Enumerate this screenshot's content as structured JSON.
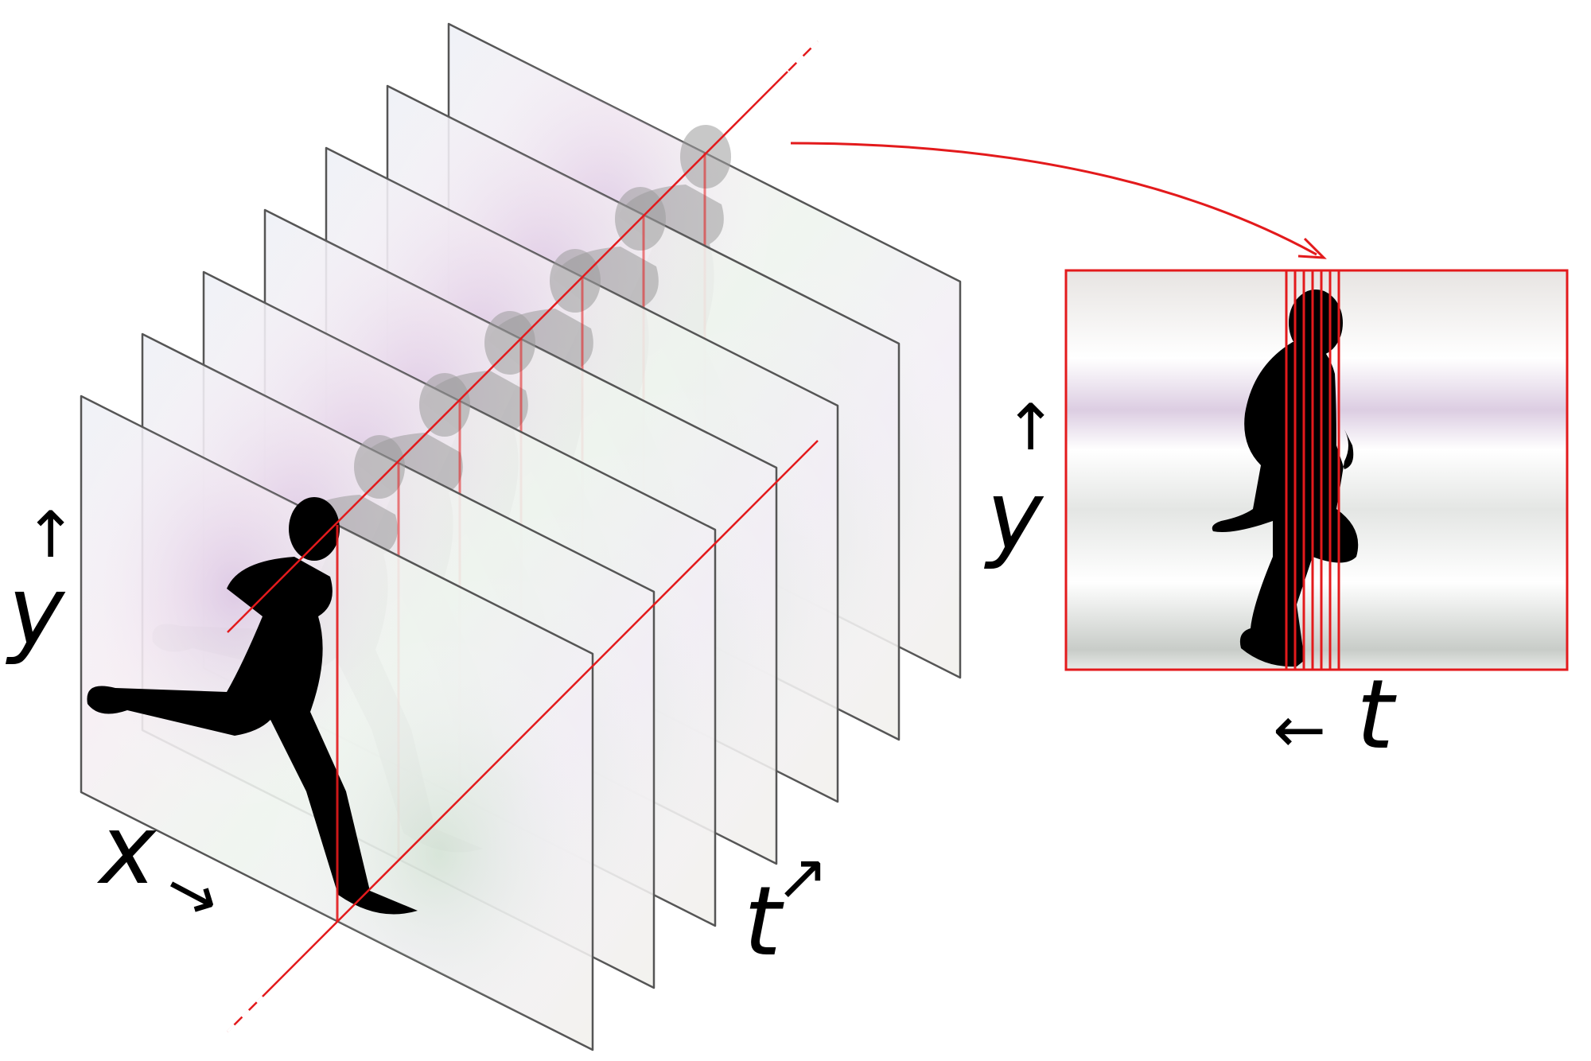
{
  "diagram": {
    "frame_count": 7,
    "colors": {
      "slice_line": "#e31a1c",
      "frame_border": "#555555",
      "silhouette": "#000000",
      "ghost_silhouette": "#9a9a9a"
    },
    "labels": {
      "left_y": "y",
      "left_y_arrow": "↑",
      "x": "x",
      "x_arrow": "→",
      "t": "t",
      "t_arrow": "↗",
      "right_y": "y",
      "right_y_arrow": "↑",
      "slice_t": "t",
      "slice_t_arrow": "←"
    }
  }
}
